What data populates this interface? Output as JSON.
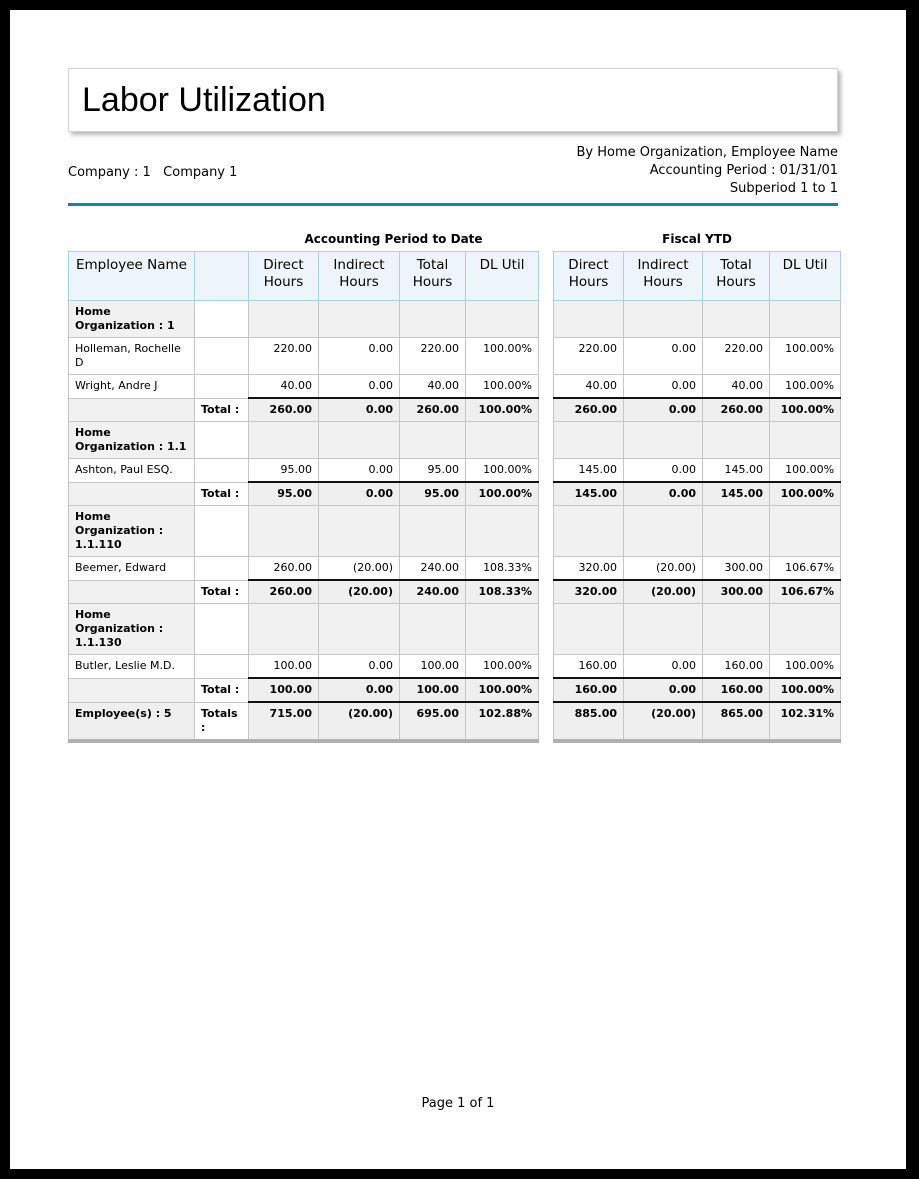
{
  "report": {
    "title": "Labor Utilization",
    "company": "Company : 1   Company 1",
    "header_right_lines": [
      "By Home Organization, Employee Name",
      "Accounting Period : 01/31/01",
      "Subperiod 1 to 1"
    ],
    "footer": "Page 1 of 1"
  },
  "colors": {
    "accent_rule": "#1f7ea3",
    "header_cell_bg": "#edf5fa",
    "header_cell_border": "#a9d2e7",
    "group_row_bg": "#f1f1f1",
    "total_row_bg": "#efefef"
  },
  "table": {
    "captions": {
      "left": "Accounting Period to Date",
      "right": "Fiscal YTD"
    },
    "headers": {
      "employee": "Employee Name",
      "direct": "Direct Hours",
      "indirect": "Indirect Hours",
      "total": "Total Hours",
      "dl_util": "DL Util"
    },
    "rows": [
      {
        "type": "org",
        "label": "Home Organization : 1"
      },
      {
        "type": "employee",
        "name": "Holleman, Rochelle D",
        "apd": [
          "220.00",
          "0.00",
          "220.00",
          "100.00%"
        ],
        "ytd": [
          "220.00",
          "0.00",
          "220.00",
          "100.00%"
        ]
      },
      {
        "type": "employee",
        "name": "Wright, Andre J",
        "apd": [
          "40.00",
          "0.00",
          "40.00",
          "100.00%"
        ],
        "ytd": [
          "40.00",
          "0.00",
          "40.00",
          "100.00%"
        ]
      },
      {
        "type": "total",
        "label": "Total :",
        "apd": [
          "260.00",
          "0.00",
          "260.00",
          "100.00%"
        ],
        "ytd": [
          "260.00",
          "0.00",
          "260.00",
          "100.00%"
        ]
      },
      {
        "type": "org",
        "label": "Home Organization : 1.1"
      },
      {
        "type": "employee",
        "name": "Ashton, Paul ESQ.",
        "apd": [
          "95.00",
          "0.00",
          "95.00",
          "100.00%"
        ],
        "ytd": [
          "145.00",
          "0.00",
          "145.00",
          "100.00%"
        ]
      },
      {
        "type": "total",
        "label": "Total :",
        "apd": [
          "95.00",
          "0.00",
          "95.00",
          "100.00%"
        ],
        "ytd": [
          "145.00",
          "0.00",
          "145.00",
          "100.00%"
        ]
      },
      {
        "type": "org",
        "label": "Home Organization : 1.1.110"
      },
      {
        "type": "employee",
        "name": "Beemer, Edward",
        "apd": [
          "260.00",
          "(20.00)",
          "240.00",
          "108.33%"
        ],
        "ytd": [
          "320.00",
          "(20.00)",
          "300.00",
          "106.67%"
        ]
      },
      {
        "type": "total",
        "label": "Total :",
        "apd": [
          "260.00",
          "(20.00)",
          "240.00",
          "108.33%"
        ],
        "ytd": [
          "320.00",
          "(20.00)",
          "300.00",
          "106.67%"
        ]
      },
      {
        "type": "org",
        "label": "Home Organization : 1.1.130"
      },
      {
        "type": "employee",
        "name": "Butler, Leslie M.D.",
        "apd": [
          "100.00",
          "0.00",
          "100.00",
          "100.00%"
        ],
        "ytd": [
          "160.00",
          "0.00",
          "160.00",
          "100.00%"
        ]
      },
      {
        "type": "total",
        "label": "Total :",
        "apd": [
          "100.00",
          "0.00",
          "100.00",
          "100.00%"
        ],
        "ytd": [
          "160.00",
          "0.00",
          "160.00",
          "100.00%"
        ]
      },
      {
        "type": "grand",
        "label_left": "Employee(s) : 5",
        "label": "Totals :",
        "apd": [
          "715.00",
          "(20.00)",
          "695.00",
          "102.88%"
        ],
        "ytd": [
          "885.00",
          "(20.00)",
          "865.00",
          "102.31%"
        ]
      }
    ]
  }
}
